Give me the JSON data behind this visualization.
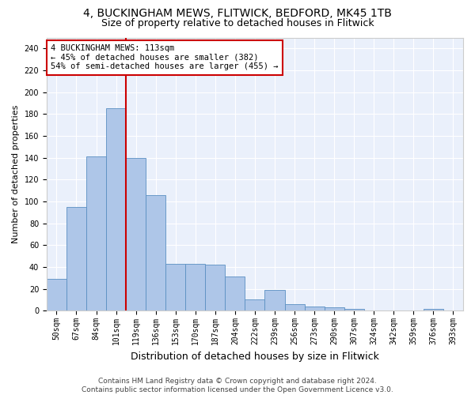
{
  "title": "4, BUCKINGHAM MEWS, FLITWICK, BEDFORD, MK45 1TB",
  "subtitle": "Size of property relative to detached houses in Flitwick",
  "xlabel": "Distribution of detached houses by size in Flitwick",
  "ylabel": "Number of detached properties",
  "bins": [
    "50sqm",
    "67sqm",
    "84sqm",
    "101sqm",
    "119sqm",
    "136sqm",
    "153sqm",
    "170sqm",
    "187sqm",
    "204sqm",
    "222sqm",
    "239sqm",
    "256sqm",
    "273sqm",
    "290sqm",
    "307sqm",
    "324sqm",
    "342sqm",
    "359sqm",
    "376sqm",
    "393sqm"
  ],
  "values": [
    29,
    95,
    141,
    185,
    140,
    106,
    43,
    43,
    42,
    31,
    10,
    19,
    6,
    4,
    3,
    2,
    0,
    0,
    0,
    2,
    0
  ],
  "bar_color": "#aec6e8",
  "bar_edge_color": "#5a8fc2",
  "property_bin_index": 3,
  "annotation_text": "4 BUCKINGHAM MEWS: 113sqm\n← 45% of detached houses are smaller (382)\n54% of semi-detached houses are larger (455) →",
  "annotation_box_color": "#ffffff",
  "annotation_box_edge_color": "#cc0000",
  "red_line_color": "#cc0000",
  "ylim": [
    0,
    250
  ],
  "yticks": [
    0,
    20,
    40,
    60,
    80,
    100,
    120,
    140,
    160,
    180,
    200,
    220,
    240
  ],
  "background_color": "#eaf0fb",
  "footer_text": "Contains HM Land Registry data © Crown copyright and database right 2024.\nContains public sector information licensed under the Open Government Licence v3.0.",
  "title_fontsize": 10,
  "subtitle_fontsize": 9,
  "xlabel_fontsize": 9,
  "ylabel_fontsize": 8,
  "tick_fontsize": 7,
  "footer_fontsize": 6.5,
  "annotation_fontsize": 7.5
}
